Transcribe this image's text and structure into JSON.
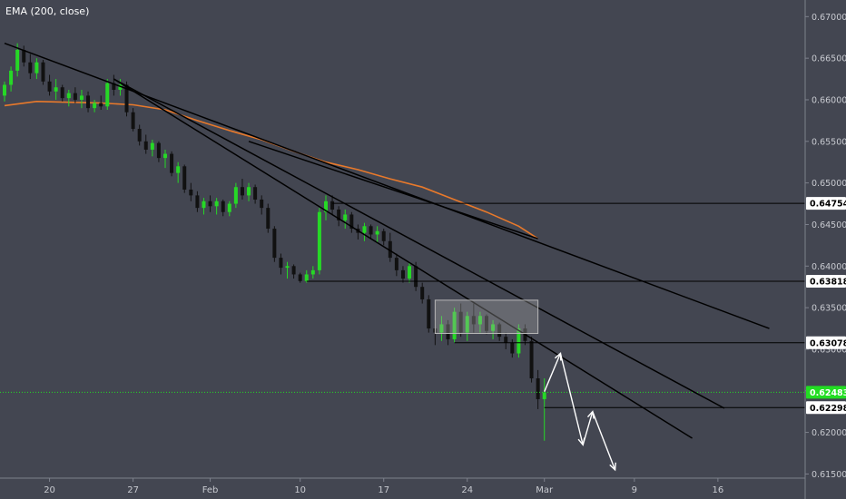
{
  "chart_data": {
    "type": "candlestick",
    "indicator": "EMA (200, close)",
    "colors": {
      "background": "#434651",
      "up": "#26d826",
      "down": "#111111",
      "ema": "#e8792b",
      "trendline": "#000000",
      "price_line": "#22dd22",
      "arrow": "#ffffff",
      "axis_text": "#c8cad0"
    },
    "y_axis": {
      "min": 0.6145,
      "max": 0.672,
      "ticks": [
        "0.67000",
        "0.66500",
        "0.66000",
        "0.65500",
        "0.65000",
        "0.64500",
        "0.64000",
        "0.63500",
        "0.63000",
        "0.62500",
        "0.62000",
        "0.61500"
      ]
    },
    "x_axis": {
      "range": [
        0,
        125
      ],
      "ticks": [
        {
          "label": "20",
          "x": 7
        },
        {
          "label": "27",
          "x": 20
        },
        {
          "label": "Feb",
          "x": 32
        },
        {
          "label": "10",
          "x": 46
        },
        {
          "label": "17",
          "x": 59
        },
        {
          "label": "24",
          "x": 72
        },
        {
          "label": "Mar",
          "x": 84
        },
        {
          "label": "9",
          "x": 98
        },
        {
          "label": "16",
          "x": 111
        }
      ]
    },
    "levels": [
      {
        "label": "0.64754",
        "value": 0.64754,
        "x_start": 51,
        "color": "#000000"
      },
      {
        "label": "0.63818",
        "value": 0.63818,
        "x_start": 47,
        "color": "#000000"
      },
      {
        "label": "0.63078",
        "value": 0.63078,
        "x_start": 70,
        "color": "#000000"
      },
      {
        "label": "0.62298",
        "value": 0.62298,
        "x_start": 84,
        "color": "#000000"
      },
      {
        "label": "0.62483",
        "value": 0.62483,
        "x_start": 0,
        "color": "#22dd22",
        "dotted": true
      }
    ],
    "trendlines": [
      {
        "x1": 0,
        "y1": 0.6668,
        "x2": 119,
        "y2": 0.6325
      },
      {
        "x1": 17,
        "y1": 0.6625,
        "x2": 112,
        "y2": 0.6229
      },
      {
        "x1": 17,
        "y1": 0.6625,
        "x2": 107,
        "y2": 0.6193
      },
      {
        "x1": 38,
        "y1": 0.655,
        "x2": 83,
        "y2": 0.6433
      }
    ],
    "box": {
      "x1": 67,
      "x2": 83,
      "y1": 0.6359,
      "y2": 0.6319
    },
    "arrows": [
      [
        {
          "x": 84,
          "y": 0.6249
        },
        {
          "x": 86.5,
          "y": 0.6295
        },
        {
          "x": 90,
          "y": 0.6185
        },
        {
          "x": 91.5,
          "y": 0.6225
        },
        {
          "x": 95,
          "y": 0.6155
        }
      ]
    ],
    "ema": [
      {
        "x": 0,
        "y": 0.6593
      },
      {
        "x": 5,
        "y": 0.6598
      },
      {
        "x": 10,
        "y": 0.6597
      },
      {
        "x": 15,
        "y": 0.6596
      },
      {
        "x": 20,
        "y": 0.6594
      },
      {
        "x": 25,
        "y": 0.6588
      },
      {
        "x": 30,
        "y": 0.6575
      },
      {
        "x": 35,
        "y": 0.6563
      },
      {
        "x": 40,
        "y": 0.6552
      },
      {
        "x": 45,
        "y": 0.6538
      },
      {
        "x": 50,
        "y": 0.6525
      },
      {
        "x": 55,
        "y": 0.6516
      },
      {
        "x": 60,
        "y": 0.6505
      },
      {
        "x": 65,
        "y": 0.6495
      },
      {
        "x": 70,
        "y": 0.648
      },
      {
        "x": 75,
        "y": 0.6465
      },
      {
        "x": 80,
        "y": 0.6448
      },
      {
        "x": 83,
        "y": 0.6433
      }
    ],
    "candles": [
      [
        0,
        0.6605,
        0.6622,
        0.6598,
        0.6618
      ],
      [
        1,
        0.6618,
        0.664,
        0.661,
        0.6635
      ],
      [
        2,
        0.6635,
        0.6668,
        0.6628,
        0.666
      ],
      [
        3,
        0.666,
        0.6665,
        0.664,
        0.6645
      ],
      [
        4,
        0.6645,
        0.6655,
        0.6625,
        0.6632
      ],
      [
        5,
        0.6632,
        0.665,
        0.6625,
        0.6645
      ],
      [
        6,
        0.6645,
        0.6648,
        0.6618,
        0.6622
      ],
      [
        7,
        0.6622,
        0.663,
        0.6605,
        0.661
      ],
      [
        8,
        0.661,
        0.6625,
        0.66,
        0.6615
      ],
      [
        9,
        0.6615,
        0.6618,
        0.6598,
        0.6602
      ],
      [
        10,
        0.6602,
        0.6612,
        0.6592,
        0.6608
      ],
      [
        11,
        0.6608,
        0.6615,
        0.6596,
        0.66
      ],
      [
        12,
        0.66,
        0.6612,
        0.659,
        0.6605
      ],
      [
        13,
        0.6605,
        0.661,
        0.6585,
        0.659
      ],
      [
        14,
        0.659,
        0.66,
        0.6585,
        0.6596
      ],
      [
        15,
        0.6596,
        0.6605,
        0.6588,
        0.6592
      ],
      [
        16,
        0.6592,
        0.6625,
        0.6588,
        0.662
      ],
      [
        17,
        0.662,
        0.663,
        0.6605,
        0.6612
      ],
      [
        18,
        0.6612,
        0.6625,
        0.6605,
        0.6618
      ],
      [
        19,
        0.6618,
        0.6622,
        0.658,
        0.6585
      ],
      [
        20,
        0.6585,
        0.659,
        0.6562,
        0.6565
      ],
      [
        21,
        0.6565,
        0.657,
        0.6545,
        0.655
      ],
      [
        22,
        0.655,
        0.6558,
        0.6535,
        0.654
      ],
      [
        23,
        0.654,
        0.6552,
        0.6532,
        0.6548
      ],
      [
        24,
        0.6548,
        0.655,
        0.6525,
        0.653
      ],
      [
        25,
        0.653,
        0.654,
        0.6518,
        0.6535
      ],
      [
        26,
        0.6535,
        0.6538,
        0.6508,
        0.6512
      ],
      [
        27,
        0.6512,
        0.6525,
        0.65,
        0.652
      ],
      [
        28,
        0.652,
        0.6522,
        0.6488,
        0.6492
      ],
      [
        29,
        0.6492,
        0.65,
        0.6478,
        0.6485
      ],
      [
        30,
        0.6485,
        0.649,
        0.6465,
        0.647
      ],
      [
        31,
        0.647,
        0.6482,
        0.6462,
        0.6478
      ],
      [
        32,
        0.6478,
        0.6485,
        0.6465,
        0.6472
      ],
      [
        33,
        0.6472,
        0.6482,
        0.6462,
        0.6478
      ],
      [
        34,
        0.6478,
        0.648,
        0.646,
        0.6465
      ],
      [
        35,
        0.6465,
        0.6478,
        0.646,
        0.6475
      ],
      [
        36,
        0.6475,
        0.65,
        0.647,
        0.6495
      ],
      [
        37,
        0.6495,
        0.6505,
        0.648,
        0.6485
      ],
      [
        38,
        0.6485,
        0.65,
        0.6478,
        0.6495
      ],
      [
        39,
        0.6495,
        0.6498,
        0.6475,
        0.648
      ],
      [
        40,
        0.648,
        0.6485,
        0.6462,
        0.647
      ],
      [
        41,
        0.647,
        0.6475,
        0.644,
        0.6445
      ],
      [
        42,
        0.6445,
        0.6448,
        0.6405,
        0.641
      ],
      [
        43,
        0.641,
        0.6415,
        0.639,
        0.6398
      ],
      [
        44,
        0.6398,
        0.6405,
        0.6385,
        0.64
      ],
      [
        45,
        0.64,
        0.6402,
        0.6385,
        0.639
      ],
      [
        46,
        0.639,
        0.6392,
        0.638,
        0.6382
      ],
      [
        47,
        0.6382,
        0.6395,
        0.638,
        0.639
      ],
      [
        48,
        0.639,
        0.64,
        0.6385,
        0.6395
      ],
      [
        49,
        0.6395,
        0.647,
        0.639,
        0.6465
      ],
      [
        50,
        0.6465,
        0.6485,
        0.6455,
        0.6478
      ],
      [
        51,
        0.6478,
        0.6485,
        0.6462,
        0.6468
      ],
      [
        52,
        0.6468,
        0.6472,
        0.6448,
        0.6455
      ],
      [
        53,
        0.6455,
        0.6468,
        0.6445,
        0.6462
      ],
      [
        54,
        0.6462,
        0.6465,
        0.644,
        0.6445
      ],
      [
        55,
        0.6445,
        0.645,
        0.6432,
        0.644
      ],
      [
        56,
        0.644,
        0.6452,
        0.643,
        0.6448
      ],
      [
        57,
        0.6448,
        0.645,
        0.6432,
        0.6438
      ],
      [
        58,
        0.6438,
        0.6448,
        0.6428,
        0.6442
      ],
      [
        59,
        0.6442,
        0.6445,
        0.6425,
        0.643
      ],
      [
        60,
        0.643,
        0.644,
        0.6405,
        0.641
      ],
      [
        61,
        0.641,
        0.6415,
        0.6388,
        0.6395
      ],
      [
        62,
        0.6395,
        0.64,
        0.638,
        0.6385
      ],
      [
        63,
        0.6385,
        0.6405,
        0.638,
        0.64
      ],
      [
        64,
        0.64,
        0.6405,
        0.637,
        0.6375
      ],
      [
        65,
        0.6375,
        0.638,
        0.6355,
        0.636
      ],
      [
        66,
        0.636,
        0.6365,
        0.632,
        0.6325
      ],
      [
        67,
        0.6325,
        0.6335,
        0.6305,
        0.632
      ],
      [
        68,
        0.632,
        0.634,
        0.631,
        0.633
      ],
      [
        69,
        0.633,
        0.6335,
        0.6305,
        0.6312
      ],
      [
        70,
        0.6312,
        0.635,
        0.6308,
        0.6345
      ],
      [
        71,
        0.6345,
        0.6355,
        0.6315,
        0.632
      ],
      [
        72,
        0.632,
        0.6345,
        0.631,
        0.634
      ],
      [
        73,
        0.634,
        0.6355,
        0.632,
        0.633
      ],
      [
        74,
        0.633,
        0.6345,
        0.632,
        0.634
      ],
      [
        75,
        0.634,
        0.6342,
        0.6318,
        0.6322
      ],
      [
        76,
        0.6322,
        0.6335,
        0.6312,
        0.633
      ],
      [
        77,
        0.633,
        0.6332,
        0.631,
        0.6315
      ],
      [
        78,
        0.6315,
        0.632,
        0.63,
        0.6308
      ],
      [
        79,
        0.6308,
        0.6312,
        0.629,
        0.6295
      ],
      [
        80,
        0.6295,
        0.633,
        0.629,
        0.6325
      ],
      [
        81,
        0.6325,
        0.633,
        0.6305,
        0.631
      ],
      [
        82,
        0.631,
        0.6315,
        0.626,
        0.6265
      ],
      [
        83,
        0.6265,
        0.6275,
        0.6228,
        0.624
      ],
      [
        84,
        0.624,
        0.6265,
        0.619,
        0.6248
      ]
    ]
  }
}
